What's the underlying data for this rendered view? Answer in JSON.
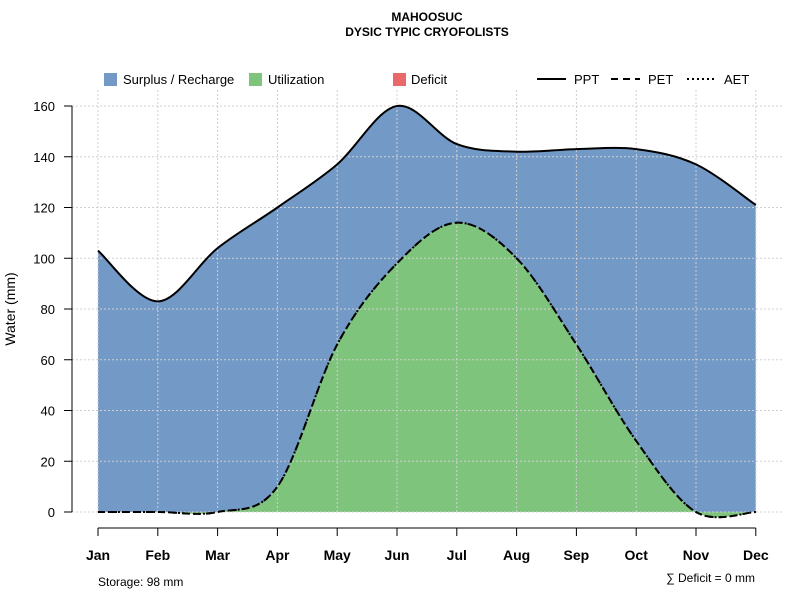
{
  "chart_data": {
    "type": "area",
    "title": "MAHOOSUC",
    "subtitle": "DYSIC TYPIC CRYOFOLISTS",
    "ylabel": "Water (mm)",
    "xlabel": "",
    "ylim": [
      0,
      160
    ],
    "yticks": [
      0,
      20,
      40,
      60,
      80,
      100,
      120,
      140,
      160
    ],
    "categories": [
      "Jan",
      "Feb",
      "Mar",
      "Apr",
      "May",
      "Jun",
      "Jul",
      "Aug",
      "Sep",
      "Oct",
      "Nov",
      "Dec"
    ],
    "grid": true,
    "legend_position": "top",
    "areas": [
      {
        "name": "Surplus / Recharge",
        "color": "#7399C6"
      },
      {
        "name": "Utilization",
        "color": "#7FC47C"
      },
      {
        "name": "Deficit",
        "color": "#E8696B"
      }
    ],
    "series": [
      {
        "name": "PPT",
        "style": "solid",
        "values": [
          103,
          83,
          104,
          120,
          137,
          160,
          145,
          142,
          143,
          143,
          137,
          121
        ]
      },
      {
        "name": "PET",
        "style": "dashed",
        "values": [
          0,
          0,
          0,
          10,
          66,
          98,
          114,
          100,
          66,
          28,
          0,
          0
        ]
      },
      {
        "name": "AET",
        "style": "dotted",
        "values": [
          0,
          0,
          0,
          10,
          66,
          98,
          114,
          100,
          66,
          28,
          0,
          0
        ]
      }
    ],
    "annotations": {
      "storage": "Storage: 98 mm",
      "deficit": "∑ Deficit = 0 mm"
    }
  }
}
